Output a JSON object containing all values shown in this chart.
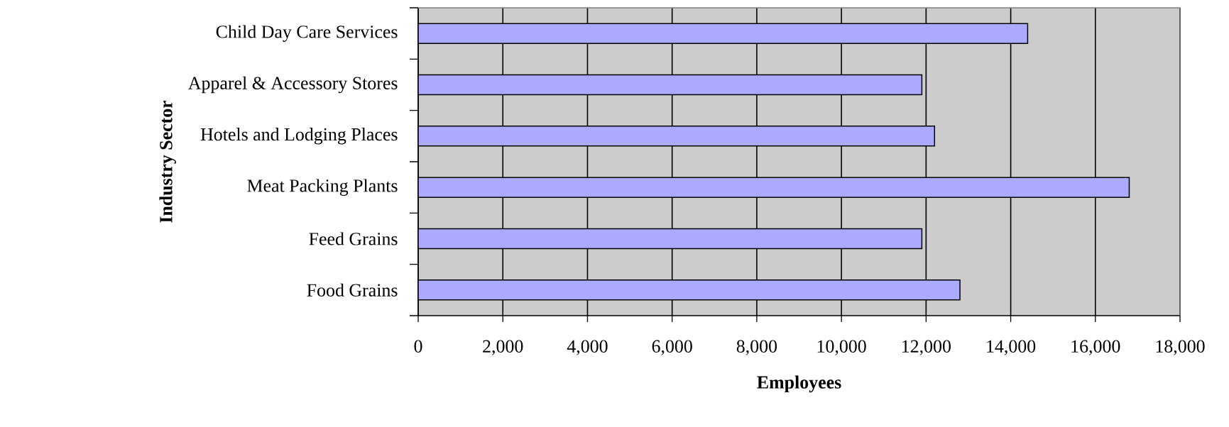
{
  "chart_data": {
    "type": "bar",
    "orientation": "horizontal",
    "xlabel": "Employees",
    "ylabel": "Industry Sector",
    "categories": [
      "Child Day Care Services",
      "Apparel & Accessory Stores",
      "Hotels and Lodging Places",
      "Meat Packing Plants",
      "Feed Grains",
      "Food Grains"
    ],
    "values": [
      14400,
      11900,
      12200,
      16800,
      11900,
      12800
    ],
    "color": "#aaaaff",
    "xlim": [
      0,
      18000
    ],
    "xticks": [
      0,
      {
        "value": 2000,
        "label": "2,000"
      },
      {
        "value": 4000,
        "label": "4,000"
      },
      {
        "value": 6000,
        "label": "6,000"
      },
      {
        "value": 8000,
        "label": "8,000"
      },
      {
        "value": 10000,
        "label": "10,000"
      },
      {
        "value": 12000,
        "label": "12,000"
      },
      {
        "value": 14000,
        "label": "14,000"
      },
      {
        "value": 16000,
        "label": "16,000"
      },
      {
        "value": 18000,
        "label": "18,000"
      }
    ],
    "grid": "x"
  }
}
